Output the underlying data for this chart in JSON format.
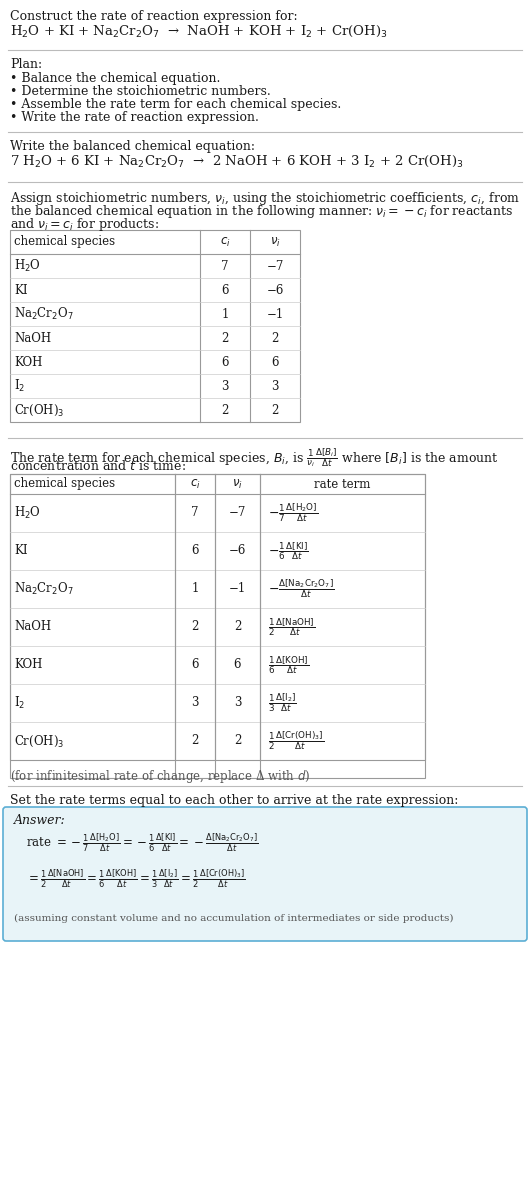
{
  "bg_color": "#ffffff",
  "title_line1": "Construct the rate of reaction expression for:",
  "unbalanced_eq": "H$_2$O + KI + Na$_2$Cr$_2$O$_7$  →  NaOH + KOH + I$_2$ + Cr(OH)$_3$",
  "plan_header": "Plan:",
  "plan_items": [
    "• Balance the chemical equation.",
    "• Determine the stoichiometric numbers.",
    "• Assemble the rate term for each chemical species.",
    "• Write the rate of reaction expression."
  ],
  "balanced_header": "Write the balanced chemical equation:",
  "balanced_eq": "7 H$_2$O + 6 KI + Na$_2$Cr$_2$O$_7$  →  2 NaOH + 6 KOH + 3 I$_2$ + 2 Cr(OH)$_3$",
  "stoich_header_1": "Assign stoichiometric numbers, $\\nu_i$, using the stoichiometric coefficients, $c_i$, from",
  "stoich_header_2": "the balanced chemical equation in the following manner: $\\nu_i = -c_i$ for reactants",
  "stoich_header_3": "and $\\nu_i = c_i$ for products:",
  "table1_headers": [
    "chemical species",
    "$c_i$",
    "$\\nu_i$"
  ],
  "table1_rows": [
    [
      "H$_2$O",
      "7",
      "−7"
    ],
    [
      "KI",
      "6",
      "−6"
    ],
    [
      "Na$_2$Cr$_2$O$_7$",
      "1",
      "−1"
    ],
    [
      "NaOH",
      "2",
      "2"
    ],
    [
      "KOH",
      "6",
      "6"
    ],
    [
      "I$_2$",
      "3",
      "3"
    ],
    [
      "Cr(OH)$_3$",
      "2",
      "2"
    ]
  ],
  "rate_term_header_1": "The rate term for each chemical species, $B_i$, is $\\frac{1}{\\nu_i}\\frac{\\Delta[B_i]}{\\Delta t}$ where $[B_i]$ is the amount",
  "rate_term_header_2": "concentration and $t$ is time:",
  "table2_headers": [
    "chemical species",
    "$c_i$",
    "$\\nu_i$",
    "rate term"
  ],
  "table2_rows": [
    [
      "H$_2$O",
      "7",
      "−7",
      "$-\\frac{1}{7}\\frac{\\Delta[\\mathrm{H_2O}]}{\\Delta t}$"
    ],
    [
      "KI",
      "6",
      "−6",
      "$-\\frac{1}{6}\\frac{\\Delta[\\mathrm{KI}]}{\\Delta t}$"
    ],
    [
      "Na$_2$Cr$_2$O$_7$",
      "1",
      "−1",
      "$-\\frac{\\Delta[\\mathrm{Na_2Cr_2O_7}]}{\\Delta t}$"
    ],
    [
      "NaOH",
      "2",
      "2",
      "$\\frac{1}{2}\\frac{\\Delta[\\mathrm{NaOH}]}{\\Delta t}$"
    ],
    [
      "KOH",
      "6",
      "6",
      "$\\frac{1}{6}\\frac{\\Delta[\\mathrm{KOH}]}{\\Delta t}$"
    ],
    [
      "I$_2$",
      "3",
      "3",
      "$\\frac{1}{3}\\frac{\\Delta[\\mathrm{I_2}]}{\\Delta t}$"
    ],
    [
      "Cr(OH)$_3$",
      "2",
      "2",
      "$\\frac{1}{2}\\frac{\\Delta[\\mathrm{Cr(OH)_3}]}{\\Delta t}$"
    ]
  ],
  "infinitesimal_note": "(for infinitesimal rate of change, replace Δ with $d$)",
  "set_rate_header": "Set the rate terms equal to each other to arrive at the rate expression:",
  "answer_box_color": "#e8f4f8",
  "answer_box_border": "#5baed4",
  "answer_label": "Answer:",
  "rate_line1": "rate $= -\\frac{1}{7}\\frac{\\Delta[\\mathrm{H_2O}]}{\\Delta t} = -\\frac{1}{6}\\frac{\\Delta[\\mathrm{KI}]}{\\Delta t} = -\\frac{\\Delta[\\mathrm{Na_2Cr_2O_7}]}{\\Delta t}$",
  "rate_line2": "$= \\frac{1}{2}\\frac{\\Delta[\\mathrm{NaOH}]}{\\Delta t} = \\frac{1}{6}\\frac{\\Delta[\\mathrm{KOH}]}{\\Delta t} = \\frac{1}{3}\\frac{\\Delta[\\mathrm{I_2}]}{\\Delta t} = \\frac{1}{2}\\frac{\\Delta[\\mathrm{Cr(OH)_3}]}{\\Delta t}$",
  "assuming_note": "(assuming constant volume and no accumulation of intermediates or side products)"
}
